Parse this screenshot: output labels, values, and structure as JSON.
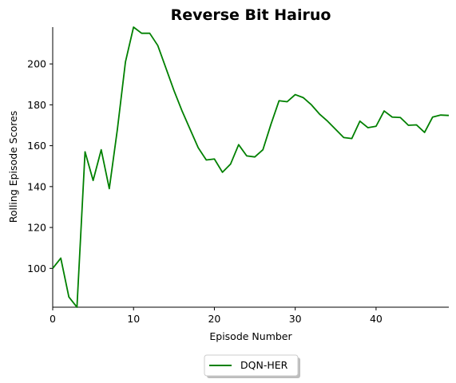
{
  "chart_data": {
    "type": "line",
    "title": "Reverse Bit Hairuo",
    "xlabel": "Episode Number",
    "ylabel": "Rolling Episode Scores",
    "xlim": [
      0,
      49
    ],
    "ylim": [
      81,
      218
    ],
    "xticks": [
      0,
      10,
      20,
      30,
      40
    ],
    "yticks": [
      100,
      120,
      140,
      160,
      180,
      200
    ],
    "grid": false,
    "legend_position": "bottom-center",
    "series": [
      {
        "name": "DQN-HER",
        "color": "#008000",
        "x": [
          0,
          1,
          2,
          3,
          4,
          5,
          6,
          7,
          8,
          9,
          10,
          11,
          12,
          13,
          14,
          15,
          16,
          17,
          18,
          19,
          20,
          21,
          22,
          23,
          24,
          25,
          26,
          27,
          28,
          29,
          30,
          31,
          32,
          33,
          34,
          35,
          36,
          37,
          38,
          39,
          40,
          41,
          42,
          43,
          44,
          45,
          46,
          47,
          48,
          49
        ],
        "values": [
          100,
          105,
          86,
          81,
          157,
          143,
          158,
          139,
          168,
          201,
          218,
          215,
          215,
          209,
          198,
          187,
          177,
          168,
          159,
          153,
          153.5,
          147,
          151,
          160.5,
          155,
          154.5,
          158,
          170.5,
          182,
          181.5,
          185,
          183.5,
          180,
          175.5,
          172,
          168,
          164,
          163.5,
          172,
          168.8,
          169.5,
          177,
          174,
          173.8,
          170,
          170.2,
          166.5,
          174,
          175,
          174.8
        ]
      }
    ]
  }
}
